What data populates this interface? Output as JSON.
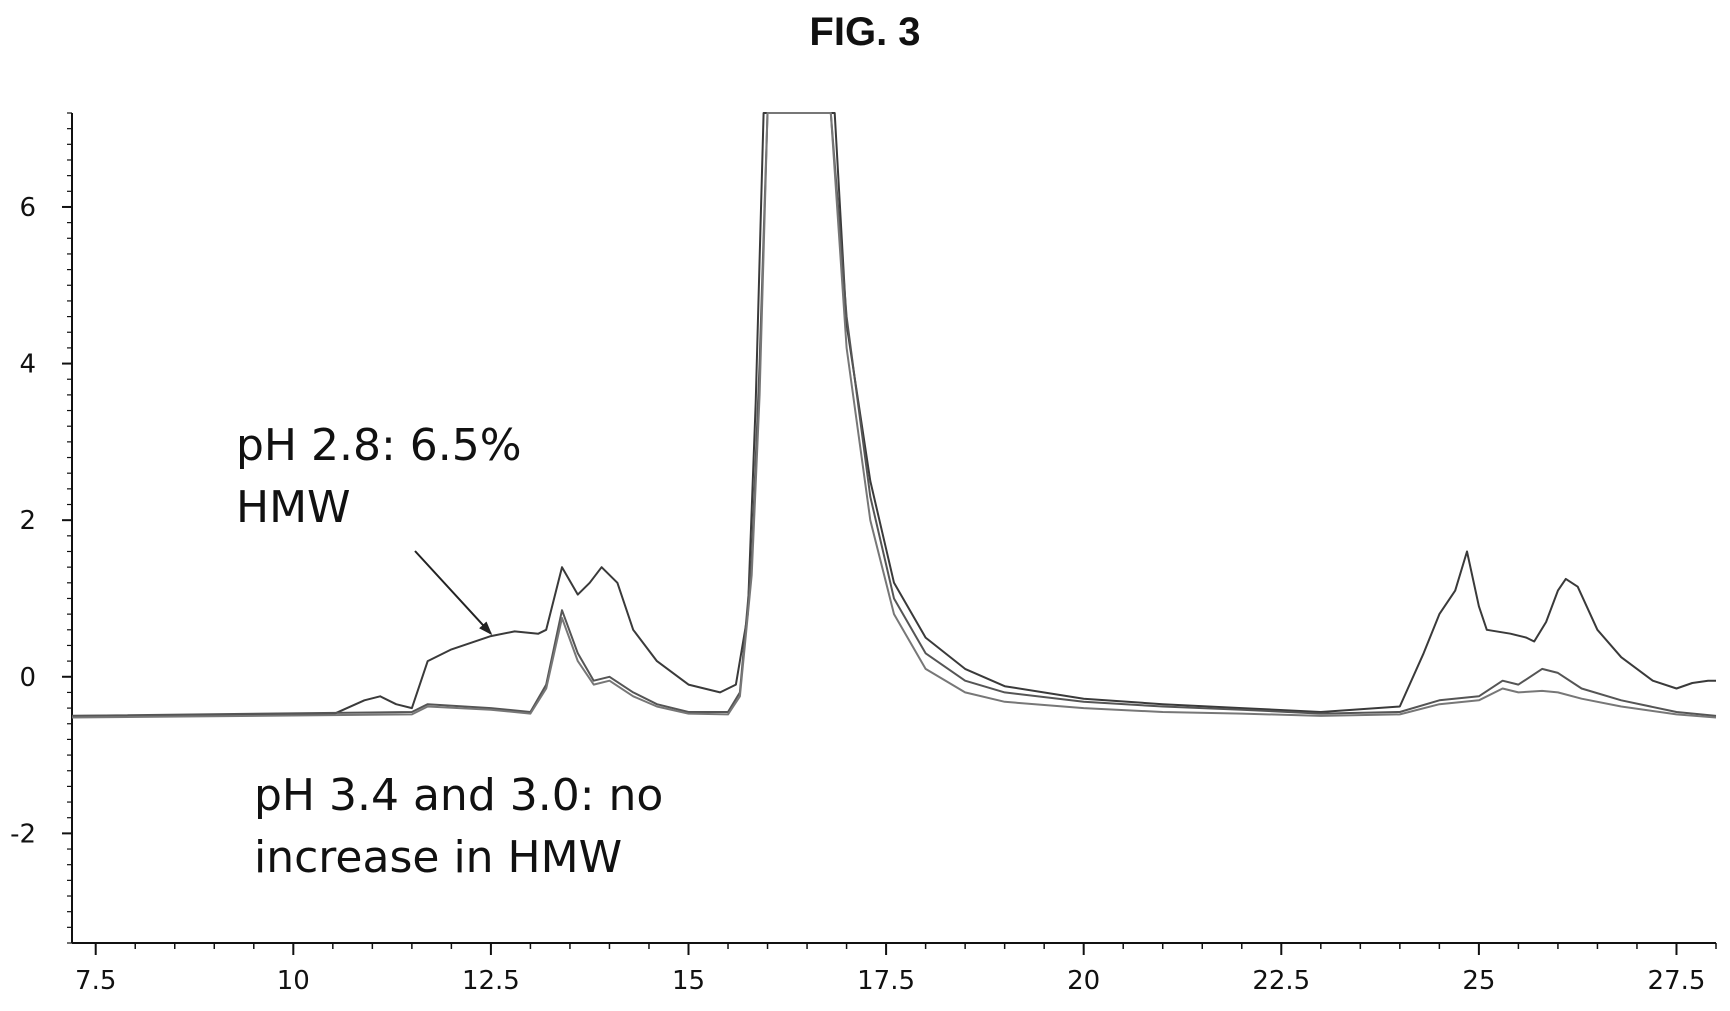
{
  "figure": {
    "title": "FIG. 3"
  },
  "chart_data": {
    "type": "line",
    "title": "FIG. 3",
    "xlabel": "",
    "ylabel": "",
    "xlim": [
      7.2,
      28.0
    ],
    "ylim": [
      -3.4,
      7.2
    ],
    "grid": false,
    "x_ticks": [
      7.5,
      10,
      12.5,
      15,
      17.5,
      20,
      22.5,
      25,
      27.5
    ],
    "x_tick_labels": [
      "7.5",
      "10",
      "12.5",
      "15",
      "17.5",
      "20",
      "22.5",
      "25",
      "27.5"
    ],
    "y_ticks": [
      -2,
      0,
      2,
      4,
      6
    ],
    "y_tick_labels": [
      "-2",
      "0",
      "2",
      "4",
      "6"
    ],
    "series": [
      {
        "values": [
          [
            7.2,
            -0.5
          ],
          [
            10.5,
            -0.48
          ],
          [
            10.9,
            -0.3
          ],
          [
            11.1,
            -0.25
          ],
          [
            11.3,
            -0.35
          ],
          [
            11.5,
            -0.4
          ],
          [
            11.7,
            0.2
          ],
          [
            12.0,
            0.35
          ],
          [
            12.5,
            0.52
          ],
          [
            12.8,
            0.58
          ],
          [
            13.1,
            0.55
          ],
          [
            13.2,
            0.6
          ],
          [
            13.4,
            1.4
          ],
          [
            13.6,
            1.05
          ],
          [
            13.75,
            1.2
          ],
          [
            13.9,
            1.4
          ],
          [
            14.1,
            1.2
          ],
          [
            14.3,
            0.6
          ],
          [
            14.6,
            0.2
          ],
          [
            15.0,
            -0.1
          ],
          [
            15.4,
            -0.2
          ],
          [
            15.6,
            -0.1
          ],
          [
            15.75,
            0.8
          ],
          [
            15.85,
            3.5
          ],
          [
            15.95,
            7.2
          ],
          [
            16.85,
            7.2
          ],
          [
            17.0,
            4.5
          ],
          [
            17.3,
            2.5
          ],
          [
            17.6,
            1.2
          ],
          [
            18.0,
            0.5
          ],
          [
            18.5,
            0.1
          ],
          [
            19.0,
            -0.12
          ],
          [
            20.0,
            -0.28
          ],
          [
            21.0,
            -0.35
          ],
          [
            22.0,
            -0.4
          ],
          [
            23.0,
            -0.45
          ],
          [
            24.0,
            -0.38
          ],
          [
            24.3,
            0.3
          ],
          [
            24.5,
            0.8
          ],
          [
            24.7,
            1.1
          ],
          [
            24.85,
            1.6
          ],
          [
            25.0,
            0.9
          ],
          [
            25.1,
            0.6
          ],
          [
            25.4,
            0.55
          ],
          [
            25.6,
            0.5
          ],
          [
            25.7,
            0.45
          ],
          [
            25.85,
            0.7
          ],
          [
            26.0,
            1.1
          ],
          [
            26.1,
            1.25
          ],
          [
            26.25,
            1.15
          ],
          [
            26.5,
            0.6
          ],
          [
            26.8,
            0.25
          ],
          [
            27.2,
            -0.05
          ],
          [
            27.5,
            -0.15
          ],
          [
            27.7,
            -0.08
          ],
          [
            27.9,
            -0.05
          ],
          [
            28.0,
            -0.05
          ]
        ]
      },
      {
        "values": [
          [
            7.2,
            -0.5
          ],
          [
            11.5,
            -0.45
          ],
          [
            11.7,
            -0.35
          ],
          [
            12.5,
            -0.4
          ],
          [
            13.0,
            -0.45
          ],
          [
            13.2,
            -0.1
          ],
          [
            13.4,
            0.85
          ],
          [
            13.6,
            0.3
          ],
          [
            13.8,
            -0.05
          ],
          [
            14.0,
            0.0
          ],
          [
            14.3,
            -0.2
          ],
          [
            14.6,
            -0.35
          ],
          [
            15.0,
            -0.45
          ],
          [
            15.5,
            -0.45
          ],
          [
            15.65,
            -0.2
          ],
          [
            15.8,
            1.5
          ],
          [
            15.9,
            4.0
          ],
          [
            16.0,
            7.2
          ],
          [
            16.8,
            7.2
          ],
          [
            17.0,
            4.6
          ],
          [
            17.3,
            2.3
          ],
          [
            17.6,
            1.0
          ],
          [
            18.0,
            0.3
          ],
          [
            18.5,
            -0.05
          ],
          [
            19.0,
            -0.2
          ],
          [
            20.0,
            -0.32
          ],
          [
            21.0,
            -0.38
          ],
          [
            22.0,
            -0.42
          ],
          [
            23.0,
            -0.47
          ],
          [
            24.0,
            -0.45
          ],
          [
            24.5,
            -0.3
          ],
          [
            25.0,
            -0.25
          ],
          [
            25.3,
            -0.05
          ],
          [
            25.5,
            -0.1
          ],
          [
            25.8,
            0.1
          ],
          [
            26.0,
            0.05
          ],
          [
            26.3,
            -0.15
          ],
          [
            26.8,
            -0.3
          ],
          [
            27.5,
            -0.45
          ],
          [
            28.0,
            -0.5
          ]
        ]
      },
      {
        "values": [
          [
            7.2,
            -0.52
          ],
          [
            11.5,
            -0.48
          ],
          [
            11.7,
            -0.38
          ],
          [
            12.5,
            -0.42
          ],
          [
            13.0,
            -0.47
          ],
          [
            13.2,
            -0.15
          ],
          [
            13.4,
            0.75
          ],
          [
            13.6,
            0.2
          ],
          [
            13.8,
            -0.1
          ],
          [
            14.0,
            -0.05
          ],
          [
            14.3,
            -0.25
          ],
          [
            14.6,
            -0.38
          ],
          [
            15.0,
            -0.47
          ],
          [
            15.5,
            -0.48
          ],
          [
            15.65,
            -0.25
          ],
          [
            15.8,
            1.3
          ],
          [
            15.9,
            3.6
          ],
          [
            16.0,
            7.2
          ],
          [
            16.8,
            7.2
          ],
          [
            17.0,
            4.2
          ],
          [
            17.3,
            2.0
          ],
          [
            17.6,
            0.8
          ],
          [
            18.0,
            0.1
          ],
          [
            18.5,
            -0.2
          ],
          [
            19.0,
            -0.32
          ],
          [
            20.0,
            -0.4
          ],
          [
            21.0,
            -0.45
          ],
          [
            22.0,
            -0.47
          ],
          [
            23.0,
            -0.5
          ],
          [
            24.0,
            -0.48
          ],
          [
            24.5,
            -0.35
          ],
          [
            25.0,
            -0.3
          ],
          [
            25.3,
            -0.15
          ],
          [
            25.5,
            -0.2
          ],
          [
            25.8,
            -0.18
          ],
          [
            26.0,
            -0.2
          ],
          [
            26.3,
            -0.28
          ],
          [
            26.8,
            -0.38
          ],
          [
            27.5,
            -0.48
          ],
          [
            28.0,
            -0.52
          ]
        ]
      }
    ],
    "annotations": [
      {
        "lines": [
          "pH 2.8: 6.5%",
          "HMW"
        ],
        "arrow_to": [
          12.5,
          0.55
        ]
      },
      {
        "lines": [
          "pH 3.4 and 3.0: no",
          "increase in HMW"
        ]
      }
    ]
  }
}
